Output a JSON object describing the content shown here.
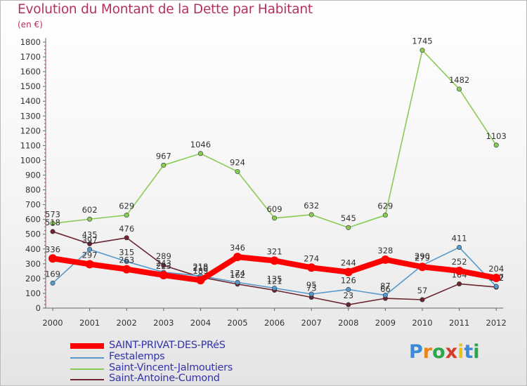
{
  "title": "Evolution du Montant de la Dette par Habitant",
  "subtitle": "(en €)",
  "chart_data": {
    "type": "line",
    "title": "Evolution du Montant de la Dette par Habitant",
    "ylabel": "(en €)",
    "xlabel": "",
    "x": [
      "2000",
      "2001",
      "2002",
      "2003",
      "2004",
      "2005",
      "2006",
      "2007",
      "2008",
      "2009",
      "2010",
      "2011",
      "2012"
    ],
    "ylim": [
      0,
      1800
    ],
    "yticks": [
      0,
      100,
      200,
      300,
      400,
      500,
      600,
      700,
      800,
      900,
      1000,
      1100,
      1200,
      1300,
      1400,
      1500,
      1600,
      1700,
      1800
    ],
    "grid": false,
    "legend_position": "bottom-left",
    "series": [
      {
        "name": "Saint-Vincent-Jalmoutiers",
        "color": "#88cc55",
        "values": [
          573,
          602,
          629,
          967,
          1046,
          924,
          609,
          632,
          545,
          629,
          1745,
          1482,
          1103
        ]
      },
      {
        "name": "Saint-Antoine-Cumond",
        "color": "#6b2430",
        "values": [
          518,
          435,
          476,
          289,
          210,
          162,
          121,
          73,
          23,
          66,
          57,
          164,
          142
        ]
      },
      {
        "name": "Festalemps",
        "color": "#5599cc",
        "values": [
          169,
          397,
          315,
          243,
          218,
          174,
          135,
          95,
          126,
          87,
          290,
          411,
          147
        ]
      },
      {
        "name": "SAINT-PRIVAT-DES-PRéS",
        "color": "#ff0000",
        "values": [
          336,
          297,
          263,
          223,
          189,
          346,
          321,
          274,
          244,
          328,
          279,
          252,
          204
        ]
      }
    ]
  },
  "legend": [
    {
      "label": "SAINT-PRIVAT-DES-PRéS",
      "color": "#ff0000"
    },
    {
      "label": "Festalemps",
      "color": "#5599cc"
    },
    {
      "label": "Saint-Vincent-Jalmoutiers",
      "color": "#88cc55"
    },
    {
      "label": "Saint-Antoine-Cumond",
      "color": "#6b2430"
    }
  ],
  "logo": {
    "text": "Proxiti"
  }
}
